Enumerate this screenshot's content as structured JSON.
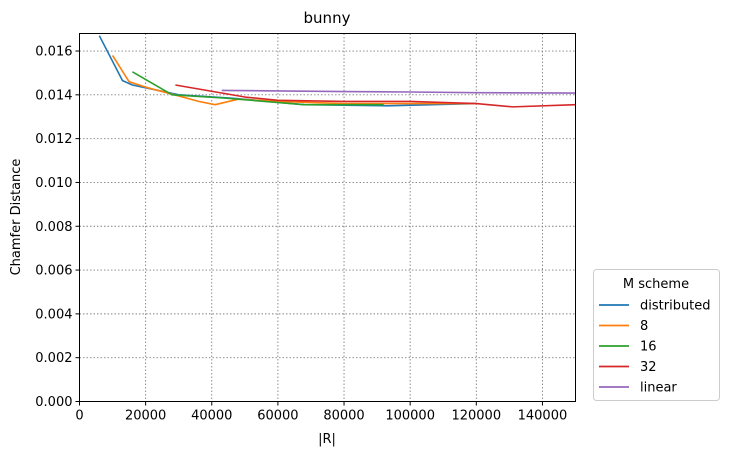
{
  "chart_data": {
    "type": "line",
    "title": "bunny",
    "xlabel": "|R|",
    "ylabel": "Chamfer Distance",
    "xlim": [
      0,
      150000
    ],
    "ylim": [
      0,
      0.0168
    ],
    "xticks": [
      0,
      20000,
      40000,
      60000,
      80000,
      100000,
      120000,
      140000
    ],
    "xtick_labels": [
      "0",
      "20000",
      "40000",
      "60000",
      "80000",
      "100000",
      "120000",
      "140000"
    ],
    "yticks": [
      0,
      0.002,
      0.004,
      0.006,
      0.008,
      0.01,
      0.012,
      0.014,
      0.016
    ],
    "ytick_labels": [
      "0.000",
      "0.002",
      "0.004",
      "0.006",
      "0.008",
      "0.010",
      "0.012",
      "0.014",
      "0.016"
    ],
    "grid": true,
    "legend": {
      "title": "M scheme",
      "placement": "outside-right-bottom"
    },
    "series": [
      {
        "name": "distributed",
        "color": "#1f77b4",
        "points": [
          [
            6000,
            0.0167
          ],
          [
            13000,
            0.01465
          ],
          [
            16000,
            0.01445
          ],
          [
            30000,
            0.014
          ],
          [
            46000,
            0.01385
          ],
          [
            68000,
            0.01355
          ],
          [
            93000,
            0.0135
          ],
          [
            120000,
            0.0136
          ]
        ]
      },
      {
        "name": "8",
        "color": "#ff7f0e",
        "points": [
          [
            10000,
            0.0158
          ],
          [
            15000,
            0.0146
          ],
          [
            20000,
            0.01435
          ],
          [
            30000,
            0.01395
          ],
          [
            36000,
            0.0137
          ],
          [
            41000,
            0.01355
          ],
          [
            48000,
            0.0138
          ],
          [
            60000,
            0.0137
          ],
          [
            80000,
            0.0136
          ],
          [
            100000,
            0.0136
          ],
          [
            120000,
            0.0136
          ]
        ]
      },
      {
        "name": "16",
        "color": "#2ca02c",
        "points": [
          [
            16000,
            0.01505
          ],
          [
            28000,
            0.014
          ],
          [
            44000,
            0.01385
          ],
          [
            68000,
            0.01355
          ],
          [
            92000,
            0.01355
          ]
        ]
      },
      {
        "name": "32",
        "color": "#d62728",
        "points": [
          [
            29000,
            0.01445
          ],
          [
            50000,
            0.0139
          ],
          [
            60000,
            0.01375
          ],
          [
            80000,
            0.0137
          ],
          [
            100000,
            0.0137
          ],
          [
            120000,
            0.0136
          ],
          [
            131000,
            0.01345
          ],
          [
            150000,
            0.01355
          ]
        ]
      },
      {
        "name": "linear",
        "color": "#9467bd",
        "points": [
          [
            43000,
            0.0142
          ],
          [
            60000,
            0.01418
          ],
          [
            80000,
            0.01415
          ],
          [
            100000,
            0.01413
          ],
          [
            120000,
            0.0141
          ],
          [
            150000,
            0.01408
          ]
        ]
      }
    ]
  }
}
